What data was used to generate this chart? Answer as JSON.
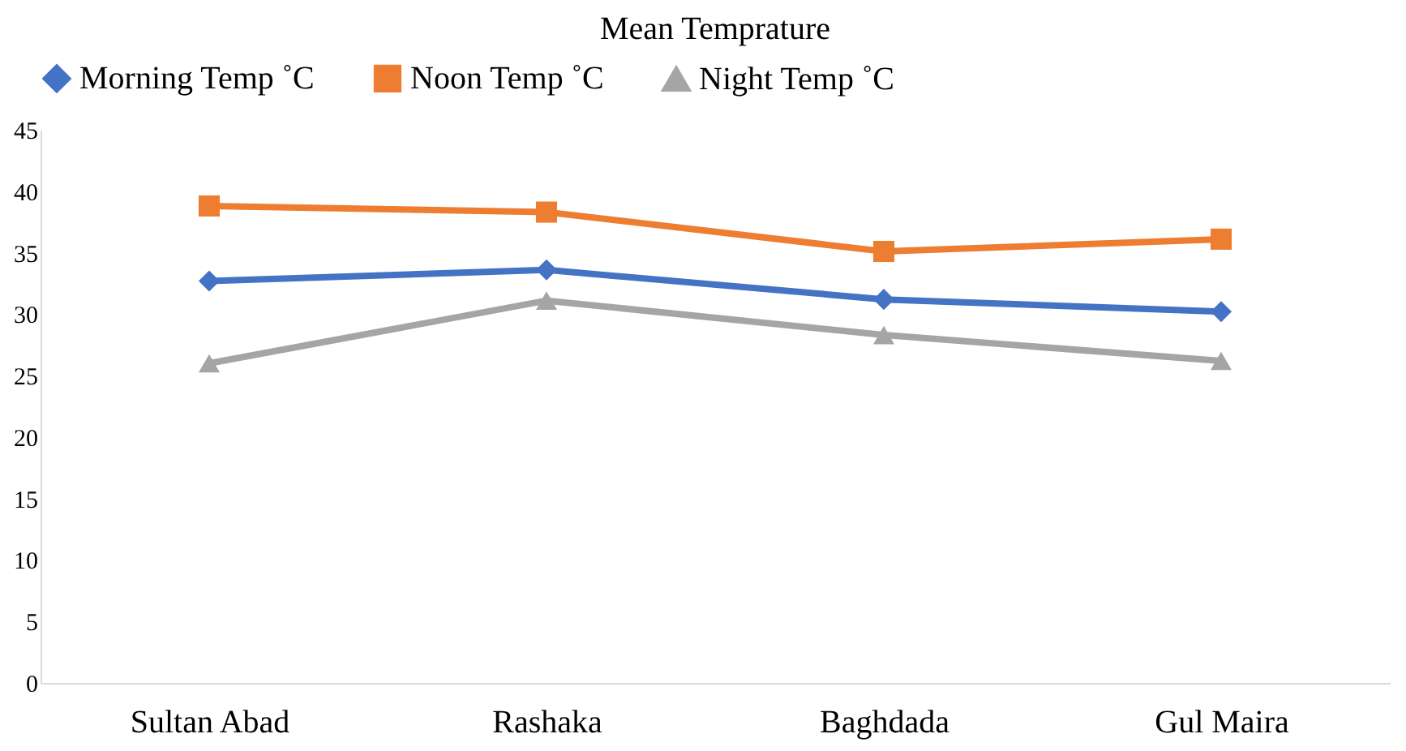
{
  "chart_data": {
    "type": "line",
    "title": "Mean Temprature",
    "categories": [
      "Sultan Abad",
      "Rashaka",
      "Baghdada",
      "Gul Maira"
    ],
    "series": [
      {
        "name": "Morning Temp ˚C",
        "color": "#4472c4",
        "marker": "diamond",
        "values": [
          32.7,
          33.6,
          31.2,
          30.2
        ]
      },
      {
        "name": "Noon Temp ˚C",
        "color": "#ed7d31",
        "marker": "square",
        "values": [
          38.8,
          38.3,
          35.1,
          36.1
        ]
      },
      {
        "name": "Night Temp ˚C",
        "color": "#a5a5a5",
        "marker": "triangle",
        "values": [
          26.0,
          31.1,
          28.3,
          26.2
        ]
      }
    ],
    "ylim": [
      0,
      45
    ],
    "yticks": [
      0,
      5,
      10,
      15,
      20,
      25,
      30,
      35,
      40,
      45
    ],
    "grid": false,
    "legend": "top",
    "line_style": "solid"
  }
}
